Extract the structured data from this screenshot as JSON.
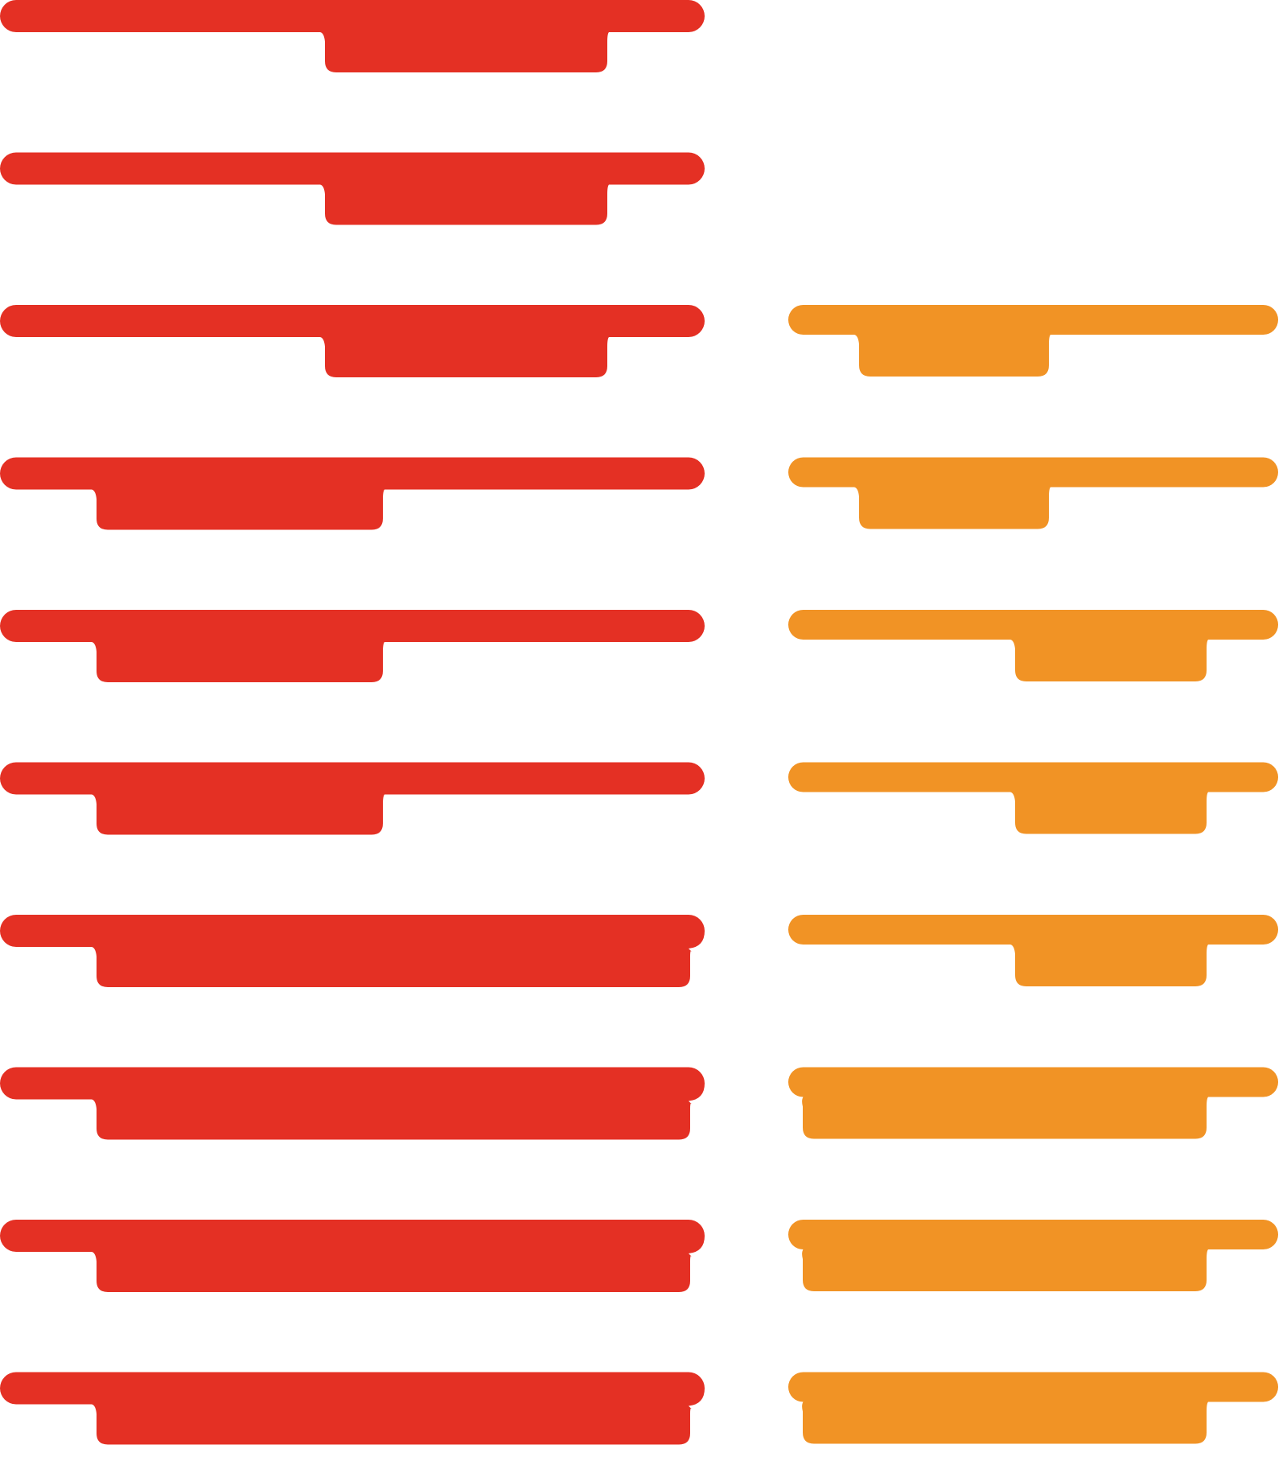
{
  "colors": {
    "background": "#ffffff",
    "left_column": "#e43024",
    "right_column": "#f19325"
  },
  "left_column": {
    "shapes": [
      {
        "name": "red-tray-1",
        "tab": "right"
      },
      {
        "name": "red-tray-2",
        "tab": "right"
      },
      {
        "name": "red-tray-3",
        "tab": "right"
      },
      {
        "name": "red-tray-4",
        "tab": "left"
      },
      {
        "name": "red-tray-5",
        "tab": "left"
      },
      {
        "name": "red-tray-6",
        "tab": "left"
      },
      {
        "name": "red-tray-7",
        "tab": "wide"
      },
      {
        "name": "red-tray-8",
        "tab": "wide"
      },
      {
        "name": "red-tray-9",
        "tab": "wide"
      },
      {
        "name": "red-tray-10",
        "tab": "wide"
      }
    ]
  },
  "right_column": {
    "shapes": [
      {
        "name": "orange-tray-1",
        "tab": "left"
      },
      {
        "name": "orange-tray-2",
        "tab": "left"
      },
      {
        "name": "orange-tray-3",
        "tab": "right"
      },
      {
        "name": "orange-tray-4",
        "tab": "right"
      },
      {
        "name": "orange-tray-5",
        "tab": "right"
      },
      {
        "name": "orange-tray-6",
        "tab": "wide"
      },
      {
        "name": "orange-tray-7",
        "tab": "wide"
      },
      {
        "name": "orange-tray-8",
        "tab": "wide"
      }
    ]
  }
}
